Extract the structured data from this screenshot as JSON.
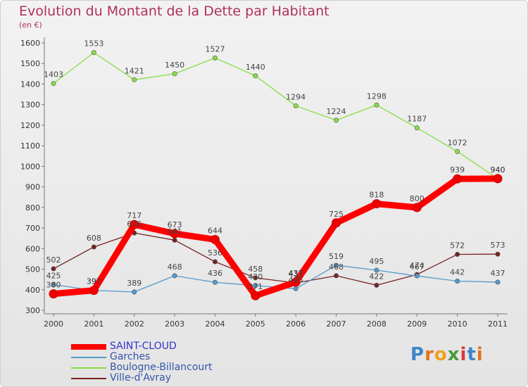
{
  "chart_data": {
    "type": "line",
    "title": "Evolution du Montant de la Dette par Habitant",
    "unit_label": "(en €)",
    "x": [
      "2000",
      "2001",
      "2002",
      "2003",
      "2004",
      "2005",
      "2006",
      "2007",
      "2008",
      "2009",
      "2010",
      "2011"
    ],
    "ylim": [
      300,
      1600
    ],
    "yticks": [
      300,
      400,
      500,
      600,
      700,
      800,
      900,
      1000,
      1100,
      1200,
      1300,
      1400,
      1500,
      1600
    ],
    "grid": false,
    "legend_position": "bottom-left",
    "series": [
      {
        "name": "SAINT-CLOUD",
        "color": "#ff0000",
        "values": [
          380,
          397,
          717,
          673,
          644,
          371,
          437,
          725,
          818,
          800,
          939,
          940
        ]
      },
      {
        "name": "Garches",
        "color": "#5599cc",
        "values": [
          425,
          397,
          389,
          468,
          436,
          420,
          405,
          519,
          495,
          467,
          442,
          437
        ]
      },
      {
        "name": "Boulogne-Billancourt",
        "color": "#88dd44",
        "values": [
          1403,
          1553,
          1421,
          1450,
          1527,
          1440,
          1294,
          1224,
          1298,
          1187,
          1072,
          940
        ]
      },
      {
        "name": "Ville-d'Avray",
        "color": "#772222",
        "values": [
          502,
          608,
          676,
          641,
          536,
          458,
          433,
          468,
          422,
          474,
          572,
          573
        ]
      }
    ]
  },
  "logo": {
    "letters": [
      "P",
      "r",
      "o",
      "x",
      "i",
      "t",
      "i"
    ]
  }
}
